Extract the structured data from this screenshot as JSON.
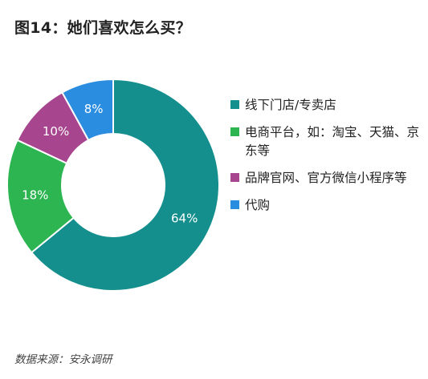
{
  "title": "图14：她们喜欢怎么买？",
  "source": "数据来源：安永调研",
  "chart_data": {
    "type": "pie",
    "donut": true,
    "legend_position": "right",
    "categories": [
      "线下门店/专卖店",
      "电商平台，如：淘宝、天猫、京东等",
      "品牌官网、官方微信小程序等",
      "代购"
    ],
    "values": [
      64,
      18,
      10,
      8
    ],
    "value_labels": [
      "64%",
      "18%",
      "10%",
      "8%"
    ],
    "colors": [
      "#148f8d",
      "#2db551",
      "#a8458f",
      "#2a8de0"
    ]
  }
}
